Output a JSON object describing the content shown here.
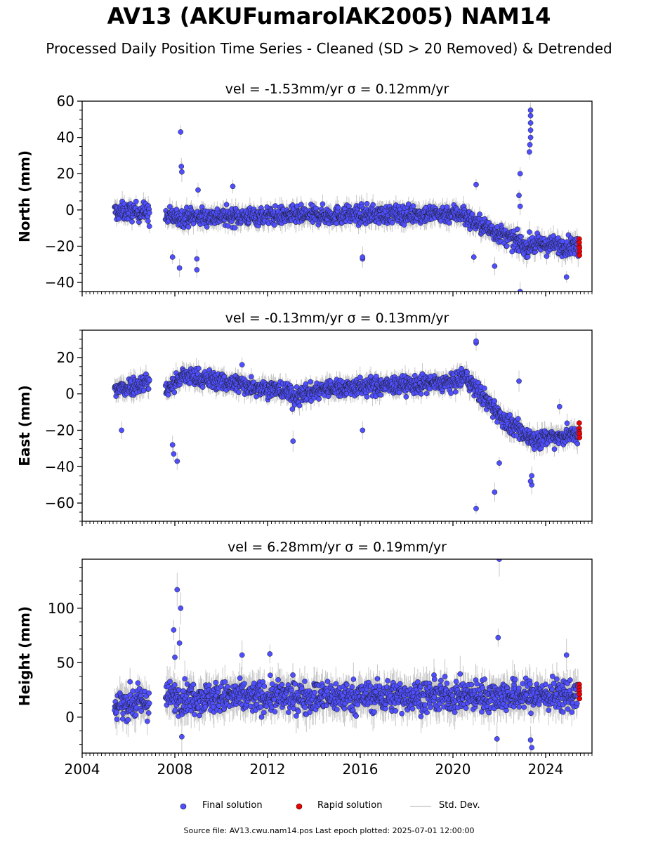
{
  "title": "AV13 (AKUFumarolAK2005) NAM14",
  "subtitle": "Processed Daily Position Time Series - Cleaned (SD > 20 Removed) & Detrended",
  "legend": {
    "final": "Final solution",
    "rapid": "Rapid solution",
    "std": "Std. Dev."
  },
  "footer": "Source file: AV13.cwu.nam14.pos  Last epoch plotted: 2025-07-01 12:00:00",
  "colors": {
    "final": "#4f4fff",
    "rapid": "#ee0000",
    "std": "#c8c8c8",
    "edge": "#1a1a1a"
  },
  "chart_data": [
    {
      "type": "scatter",
      "title": "vel = -1.53mm/yr   σ = 0.12mm/yr",
      "ylabel": "North (mm)",
      "xlim": [
        2004.0,
        2026.0
      ],
      "ylim": [
        -45,
        60
      ],
      "yticks": [
        -40,
        -20,
        0,
        20,
        40,
        60
      ],
      "xticks": [
        2004,
        2008,
        2012,
        2016,
        2020,
        2024
      ],
      "show_xtick_labels": false,
      "baseline_segments": [
        {
          "x": [
            2005.4,
            2006.9
          ],
          "y": [
            -1,
            -1
          ]
        },
        {
          "x": [
            2007.6,
            2020.5
          ],
          "y": [
            -4,
            -2
          ]
        },
        {
          "x": [
            2020.5,
            2023.3
          ],
          "y": [
            -4,
            -21
          ]
        },
        {
          "x": [
            2023.3,
            2025.4
          ],
          "y": [
            -19,
            -20
          ]
        }
      ],
      "spread": 3.5,
      "outliers": [
        {
          "x": 2008.25,
          "y": 43
        },
        {
          "x": 2008.28,
          "y": 24
        },
        {
          "x": 2008.3,
          "y": 21
        },
        {
          "x": 2008.2,
          "y": -32
        },
        {
          "x": 2007.9,
          "y": -26
        },
        {
          "x": 2008.95,
          "y": -33
        },
        {
          "x": 2008.95,
          "y": -27
        },
        {
          "x": 2010.5,
          "y": 13
        },
        {
          "x": 2009.0,
          "y": 11
        },
        {
          "x": 2016.1,
          "y": -27
        },
        {
          "x": 2016.1,
          "y": -26
        },
        {
          "x": 2021.0,
          "y": 14
        },
        {
          "x": 2022.9,
          "y": 20
        },
        {
          "x": 2022.9,
          "y": -45
        },
        {
          "x": 2024.9,
          "y": -37
        },
        {
          "x": 2020.9,
          "y": -26
        },
        {
          "x": 2021.8,
          "y": -31
        },
        {
          "x": 2006.9,
          "y": -9
        },
        {
          "x": 2023.35,
          "y": 55
        },
        {
          "x": 2023.35,
          "y": 52
        },
        {
          "x": 2023.35,
          "y": 48
        },
        {
          "x": 2023.35,
          "y": 44
        },
        {
          "x": 2023.35,
          "y": 40
        },
        {
          "x": 2023.32,
          "y": 36
        },
        {
          "x": 2023.3,
          "y": 32
        },
        {
          "x": 2022.85,
          "y": 8
        },
        {
          "x": 2022.9,
          "y": 2
        }
      ],
      "rapid": [
        {
          "x": 2025.45,
          "y": -16
        },
        {
          "x": 2025.45,
          "y": -18
        },
        {
          "x": 2025.45,
          "y": -20
        },
        {
          "x": 2025.46,
          "y": -21
        },
        {
          "x": 2025.46,
          "y": -23
        },
        {
          "x": 2025.46,
          "y": -25
        }
      ]
    },
    {
      "type": "scatter",
      "title": "vel = -0.13mm/yr   σ = 0.13mm/yr",
      "ylabel": "East (mm)",
      "xlim": [
        2004.0,
        2026.0
      ],
      "ylim": [
        -70,
        35
      ],
      "yticks": [
        -60,
        -40,
        -20,
        0,
        20
      ],
      "xticks": [
        2004,
        2008,
        2012,
        2016,
        2020,
        2024
      ],
      "show_xtick_labels": false,
      "baseline_segments": [
        {
          "x": [
            2005.4,
            2006.9
          ],
          "y": [
            2,
            7
          ]
        },
        {
          "x": [
            2007.6,
            2008.4
          ],
          "y": [
            2,
            10
          ]
        },
        {
          "x": [
            2008.4,
            2013.0
          ],
          "y": [
            10,
            1
          ]
        },
        {
          "x": [
            2013.0,
            2014.5
          ],
          "y": [
            -2,
            3
          ]
        },
        {
          "x": [
            2014.5,
            2020.0
          ],
          "y": [
            3,
            6
          ]
        },
        {
          "x": [
            2020.0,
            2020.6
          ],
          "y": [
            6,
            10
          ]
        },
        {
          "x": [
            2020.6,
            2022.5
          ],
          "y": [
            8,
            -18
          ]
        },
        {
          "x": [
            2022.5,
            2023.5
          ],
          "y": [
            -18,
            -25
          ]
        },
        {
          "x": [
            2023.5,
            2025.4
          ],
          "y": [
            -25,
            -22
          ]
        }
      ],
      "spread": 3.5,
      "outliers": [
        {
          "x": 2021.0,
          "y": 28
        },
        {
          "x": 2021.0,
          "y": 29
        },
        {
          "x": 2021.0,
          "y": -63
        },
        {
          "x": 2021.8,
          "y": -54
        },
        {
          "x": 2007.9,
          "y": -28
        },
        {
          "x": 2007.95,
          "y": -33
        },
        {
          "x": 2008.1,
          "y": -37
        },
        {
          "x": 2013.1,
          "y": -26
        },
        {
          "x": 2023.4,
          "y": -45
        },
        {
          "x": 2023.4,
          "y": -50
        },
        {
          "x": 2023.35,
          "y": -48
        },
        {
          "x": 2022.85,
          "y": 7
        },
        {
          "x": 2022.0,
          "y": -38
        },
        {
          "x": 2005.7,
          "y": -20
        },
        {
          "x": 2010.9,
          "y": 16
        },
        {
          "x": 2016.1,
          "y": -20
        },
        {
          "x": 2024.6,
          "y": -7
        }
      ],
      "rapid": [
        {
          "x": 2025.45,
          "y": -16
        },
        {
          "x": 2025.45,
          "y": -19
        },
        {
          "x": 2025.45,
          "y": -21
        },
        {
          "x": 2025.46,
          "y": -22
        },
        {
          "x": 2025.46,
          "y": -24
        }
      ]
    },
    {
      "type": "scatter",
      "title": "vel = 6.28mm/yr   σ = 0.19mm/yr",
      "ylabel": "Height (mm)",
      "xlim": [
        2004.0,
        2026.0
      ],
      "ylim": [
        -33,
        145
      ],
      "yticks": [
        0,
        50,
        100
      ],
      "xticks": [
        2004,
        2008,
        2012,
        2016,
        2020,
        2024
      ],
      "show_xtick_labels": true,
      "baseline_segments": [
        {
          "x": [
            2005.4,
            2006.9
          ],
          "y": [
            12,
            14
          ]
        },
        {
          "x": [
            2007.6,
            2025.4
          ],
          "y": [
            18,
            20
          ]
        }
      ],
      "spread": 10,
      "outliers": [
        {
          "x": 2008.1,
          "y": 117
        },
        {
          "x": 2008.25,
          "y": 100
        },
        {
          "x": 2007.95,
          "y": 80
        },
        {
          "x": 2008.2,
          "y": 68
        },
        {
          "x": 2008.0,
          "y": 55
        },
        {
          "x": 2022.0,
          "y": 145
        },
        {
          "x": 2021.95,
          "y": 73
        },
        {
          "x": 2010.9,
          "y": 57
        },
        {
          "x": 2012.1,
          "y": 58
        },
        {
          "x": 2008.3,
          "y": -18
        },
        {
          "x": 2023.4,
          "y": -28
        },
        {
          "x": 2023.35,
          "y": -21
        },
        {
          "x": 2021.9,
          "y": -20
        },
        {
          "x": 2024.9,
          "y": 57
        }
      ],
      "rapid": [
        {
          "x": 2025.45,
          "y": 30
        },
        {
          "x": 2025.45,
          "y": 27
        },
        {
          "x": 2025.45,
          "y": 24
        },
        {
          "x": 2025.46,
          "y": 21
        },
        {
          "x": 2025.46,
          "y": 17
        }
      ]
    }
  ]
}
